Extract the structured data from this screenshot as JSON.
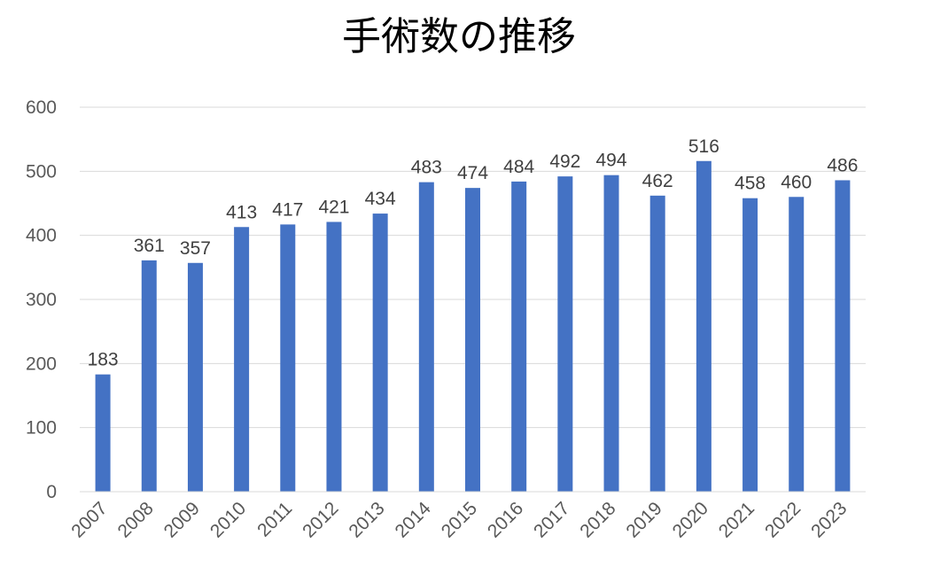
{
  "chart_data": {
    "type": "bar",
    "title": "手術数の推移",
    "xlabel": "",
    "ylabel": "",
    "categories": [
      "2007",
      "2008",
      "2009",
      "2010",
      "2011",
      "2012",
      "2013",
      "2014",
      "2015",
      "2016",
      "2017",
      "2018",
      "2019",
      "2020",
      "2021",
      "2022",
      "2023"
    ],
    "series": [
      {
        "values": [
          183,
          361,
          357,
          413,
          417,
          421,
          434,
          483,
          474,
          484,
          492,
          494,
          462,
          516,
          458,
          460,
          486
        ]
      }
    ],
    "ylim": [
      0,
      600
    ],
    "yticks": [
      "0",
      "100",
      "200",
      "300",
      "400",
      "500",
      "600"
    ],
    "grid": true,
    "legend": "none",
    "bar_color": "#4472c4"
  }
}
